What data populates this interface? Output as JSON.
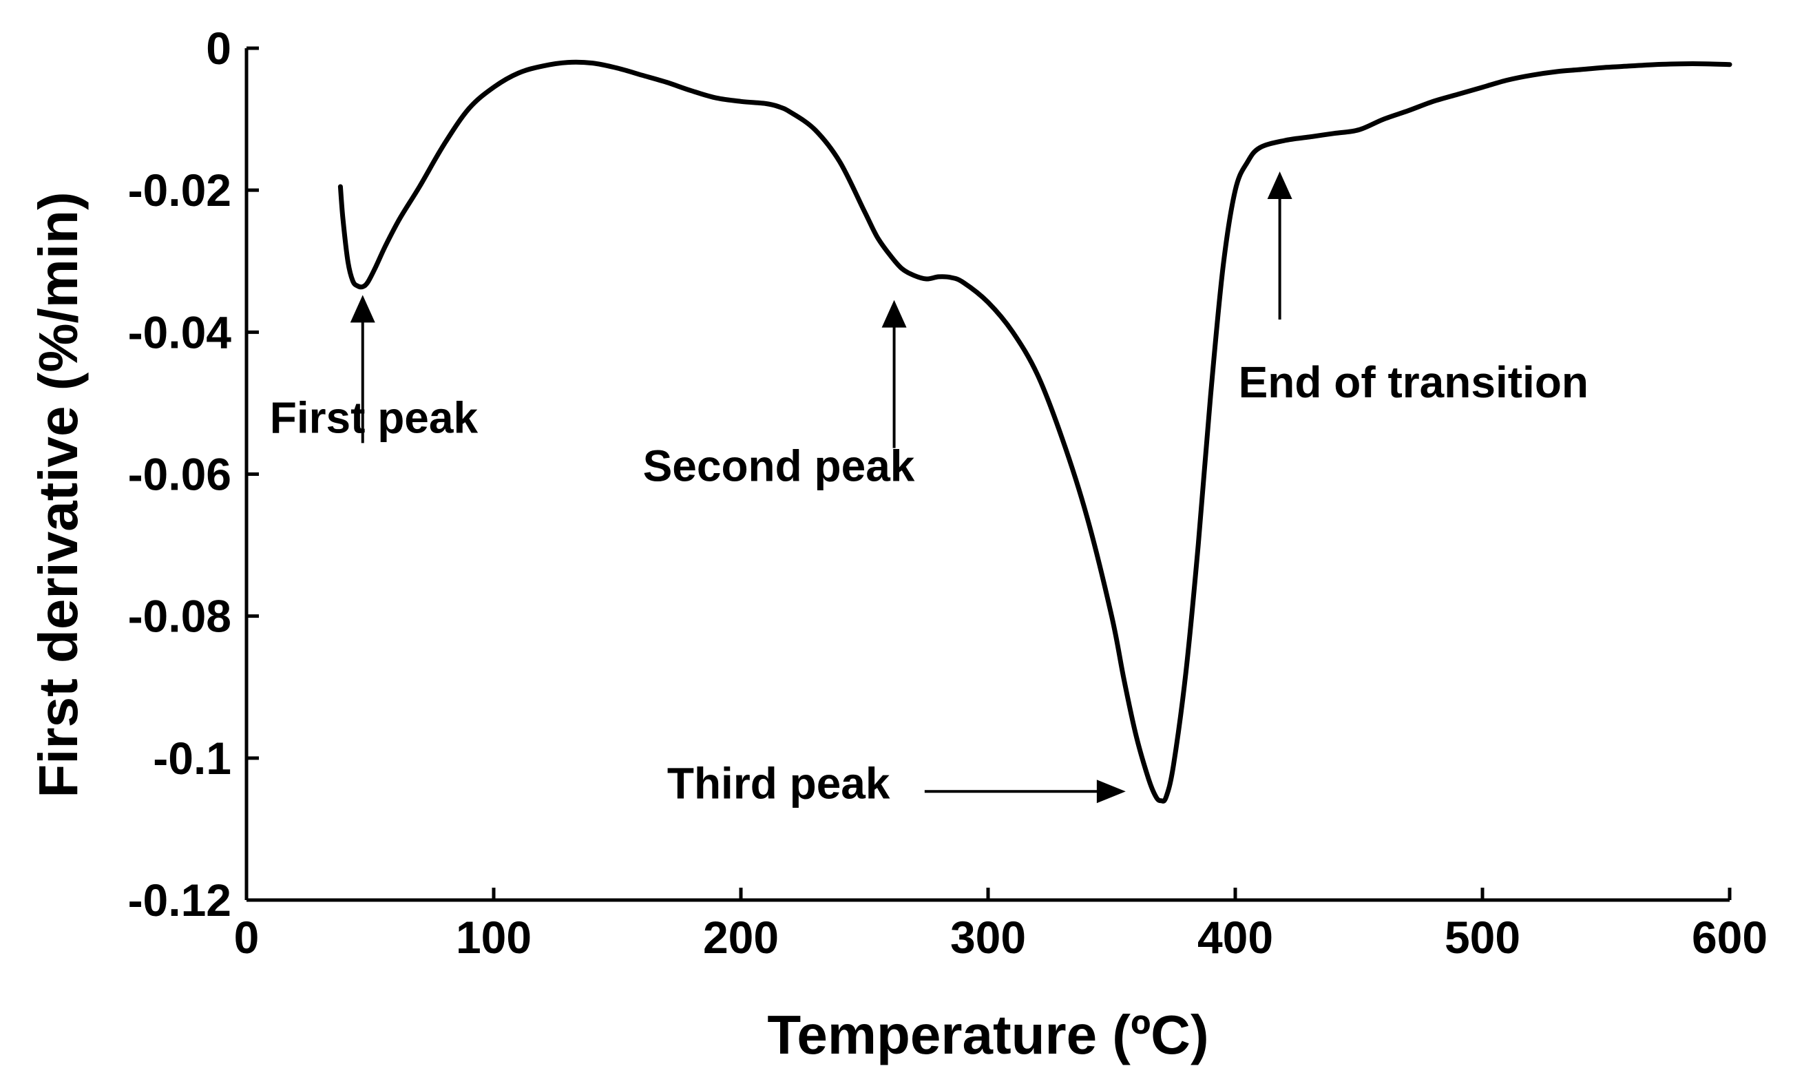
{
  "chart_data": {
    "type": "line",
    "title": "",
    "xlabel": "Temperature (ºC)",
    "ylabel": "First derivative (%/min)",
    "xlim": [
      0,
      600
    ],
    "ylim": [
      -0.12,
      0
    ],
    "grid": false,
    "legend": "none",
    "x_ticks": [
      0,
      100,
      200,
      300,
      400,
      500,
      600
    ],
    "x_tick_labels": [
      "0",
      "100",
      "200",
      "300",
      "400",
      "500",
      "600"
    ],
    "y_ticks": [
      0,
      -0.02,
      -0.04,
      -0.06,
      -0.08,
      -0.1,
      -0.12
    ],
    "y_tick_labels": [
      "0",
      "-0.02",
      "-0.04",
      "-0.06",
      "-0.08",
      "-0.1",
      "-0.12"
    ],
    "series": [
      {
        "name": "First derivative",
        "x": [
          38,
          39,
          41,
          43,
          45,
          47,
          49,
          52,
          56,
          62,
          70,
          80,
          90,
          100,
          110,
          120,
          130,
          140,
          150,
          160,
          170,
          180,
          190,
          200,
          210,
          215,
          220,
          230,
          240,
          250,
          255,
          260,
          265,
          270,
          275,
          280,
          285,
          290,
          300,
          310,
          320,
          330,
          340,
          350,
          355,
          360,
          365,
          368,
          370,
          372,
          375,
          380,
          385,
          390,
          395,
          400,
          405,
          410,
          420,
          430,
          440,
          450,
          460,
          470,
          480,
          490,
          500,
          510,
          520,
          530,
          540,
          550,
          560,
          570,
          580,
          590,
          600
        ],
        "y": [
          -0.0195,
          -0.024,
          -0.03,
          -0.0328,
          -0.0335,
          -0.0336,
          -0.033,
          -0.031,
          -0.028,
          -0.024,
          -0.0195,
          -0.0135,
          -0.0085,
          -0.0055,
          -0.0035,
          -0.0025,
          -0.002,
          -0.0021,
          -0.0028,
          -0.0038,
          -0.0048,
          -0.006,
          -0.007,
          -0.0075,
          -0.0078,
          -0.0082,
          -0.009,
          -0.0115,
          -0.016,
          -0.023,
          -0.0265,
          -0.029,
          -0.031,
          -0.032,
          -0.0325,
          -0.0322,
          -0.0323,
          -0.033,
          -0.0358,
          -0.04,
          -0.046,
          -0.055,
          -0.066,
          -0.08,
          -0.089,
          -0.097,
          -0.103,
          -0.1055,
          -0.106,
          -0.1055,
          -0.101,
          -0.088,
          -0.07,
          -0.049,
          -0.031,
          -0.02,
          -0.016,
          -0.014,
          -0.013,
          -0.0125,
          -0.012,
          -0.0115,
          -0.01,
          -0.0088,
          -0.0075,
          -0.0065,
          -0.0055,
          -0.0045,
          -0.0038,
          -0.0033,
          -0.003,
          -0.0027,
          -0.0025,
          -0.0023,
          -0.0022,
          -0.0022,
          -0.0023
        ]
      }
    ],
    "annotations": [
      {
        "text": "First peak",
        "target": [
          47,
          -0.0336
        ],
        "direction": "up"
      },
      {
        "text": "Second peak",
        "target": [
          262,
          -0.0343
        ],
        "direction": "up"
      },
      {
        "text": "Third peak",
        "target": [
          354,
          -0.1047
        ],
        "direction": "right"
      },
      {
        "text": "End of transition",
        "target": [
          418,
          -0.0162
        ],
        "direction": "up"
      }
    ]
  }
}
